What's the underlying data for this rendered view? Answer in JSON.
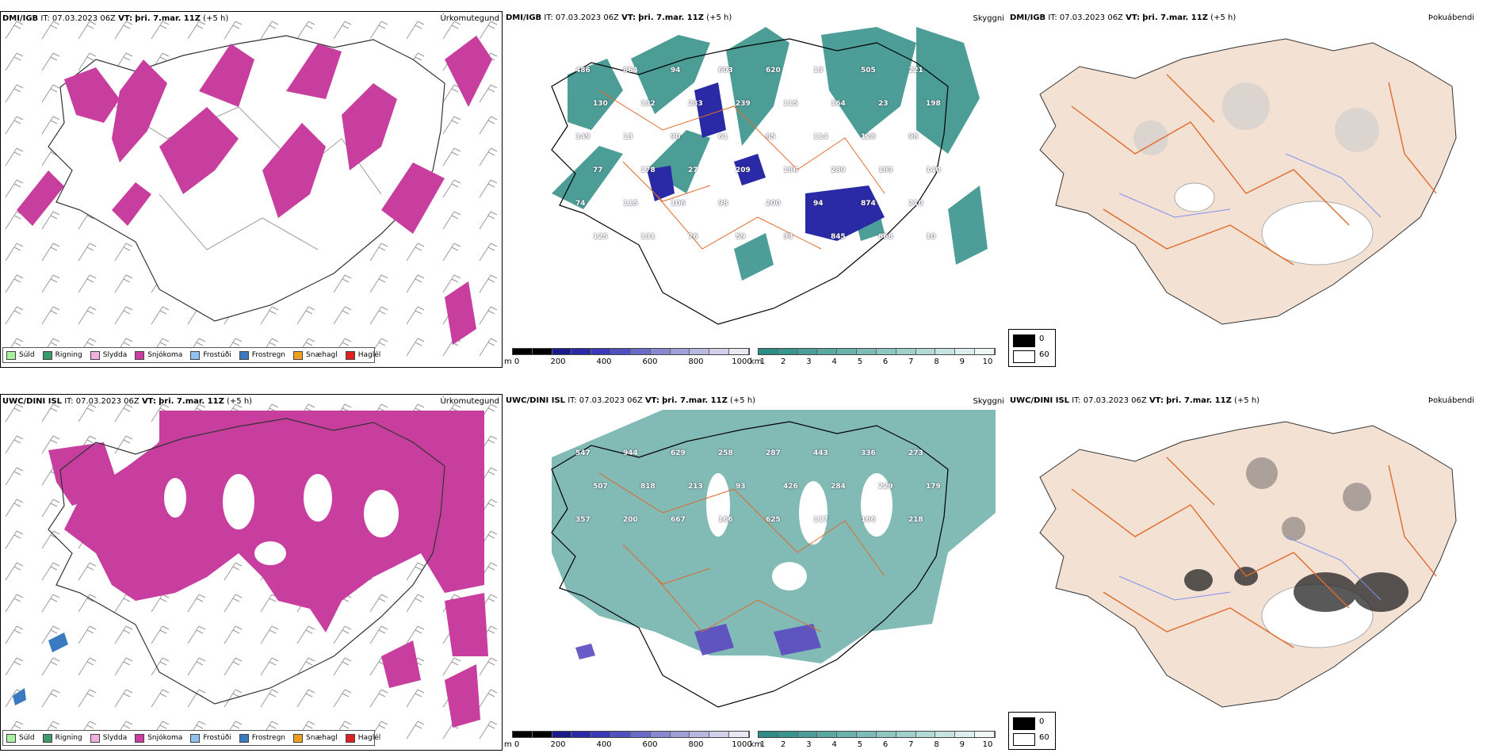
{
  "colors": {
    "precip_snow": "#c73e9f",
    "visibility_teal": "#2e8c86",
    "visibility_purple": "#2a2aa6",
    "land_fog": "#f3e1d4",
    "roads": "#e06a2a",
    "rivers": "#7f8ff0"
  },
  "top_row": {
    "precip": {
      "model": "DMI/IGB",
      "it_label": "IT:",
      "it_value": "07.03.2023 06Z",
      "vt_label": "VT:",
      "vt_value": "þri. 7.mar. 11Z",
      "lead": "(+5 h)",
      "title": "Úrkomutegund"
    },
    "visibility": {
      "model": "DMI/IGB",
      "it_label": "IT:",
      "it_value": "07.03.2023 06Z",
      "vt_label": "VT:",
      "vt_value": "þri. 7.mar. 11Z",
      "lead": "(+5 h)",
      "title": "Skyggni",
      "labels": [
        "486",
        "864",
        "94",
        "603",
        "620",
        "13",
        "505",
        "221",
        "130",
        "132",
        "233",
        "239",
        "115",
        "164",
        "23",
        "198",
        "149",
        "13",
        "90",
        "61",
        "85",
        "114",
        "128",
        "98",
        "77",
        "178",
        "27",
        "209",
        "186",
        "289",
        "183",
        "140",
        "74",
        "115",
        "106",
        "98",
        "200",
        "94",
        "874",
        "210",
        "125",
        "131",
        "76",
        "59",
        "33",
        "845",
        "868",
        "10"
      ]
    },
    "fog": {
      "model": "DMI/IGB",
      "it_label": "IT:",
      "it_value": "07.03.2023 06Z",
      "vt_label": "VT:",
      "vt_value": "þri. 7.mar. 11Z",
      "lead": "(+5 h)",
      "title": "Þokuábendi"
    }
  },
  "bottom_row": {
    "precip": {
      "model": "UWC/DINI ISL",
      "it_label": "IT:",
      "it_value": "07.03.2023 06Z",
      "vt_label": "VT:",
      "vt_value": "þri. 7.mar. 11Z",
      "lead": "(+5 h)",
      "title": "Úrkomutegund"
    },
    "visibility": {
      "model": "UWC/DINI ISL",
      "it_label": "IT:",
      "it_value": "07.03.2023 06Z",
      "vt_label": "VT:",
      "vt_value": "þri. 7.mar. 11Z",
      "lead": "(+5 h)",
      "title": "Skyggni",
      "labels": [
        "547",
        "944",
        "629",
        "258",
        "287",
        "443",
        "336",
        "273",
        "507",
        "818",
        "213",
        "93",
        "426",
        "284",
        "229",
        "179",
        "357",
        "200",
        "667",
        "166",
        "625",
        "117",
        "166",
        "218"
      ]
    },
    "fog": {
      "model": "UWC/DINI ISL",
      "it_label": "IT:",
      "it_value": "07.03.2023 06Z",
      "vt_label": "VT:",
      "vt_value": "þri. 7.mar. 11Z",
      "lead": "(+5 h)",
      "title": "Þokuábendi"
    }
  },
  "precip_legend": [
    {
      "label": "Súld",
      "color": "#a8f0a0"
    },
    {
      "label": "Rigning",
      "color": "#3a9a6a"
    },
    {
      "label": "Slydda",
      "color": "#f0b0e0"
    },
    {
      "label": "Snjókoma",
      "color": "#c73e9f"
    },
    {
      "label": "Frostúði",
      "color": "#90c0f0"
    },
    {
      "label": "Frostregn",
      "color": "#3a7ac0"
    },
    {
      "label": "Snæhagl",
      "color": "#f0a020"
    },
    {
      "label": "Haglél",
      "color": "#e02020"
    }
  ],
  "cbar_m": {
    "unit": "m",
    "ticks": [
      "0",
      "200",
      "400",
      "600",
      "800",
      "1000"
    ]
  },
  "cbar_km": {
    "unit": "km",
    "ticks": [
      "1",
      "2",
      "3",
      "4",
      "5",
      "6",
      "7",
      "8",
      "9",
      "10"
    ]
  },
  "fog_legend": {
    "values": [
      "0",
      "60"
    ]
  }
}
